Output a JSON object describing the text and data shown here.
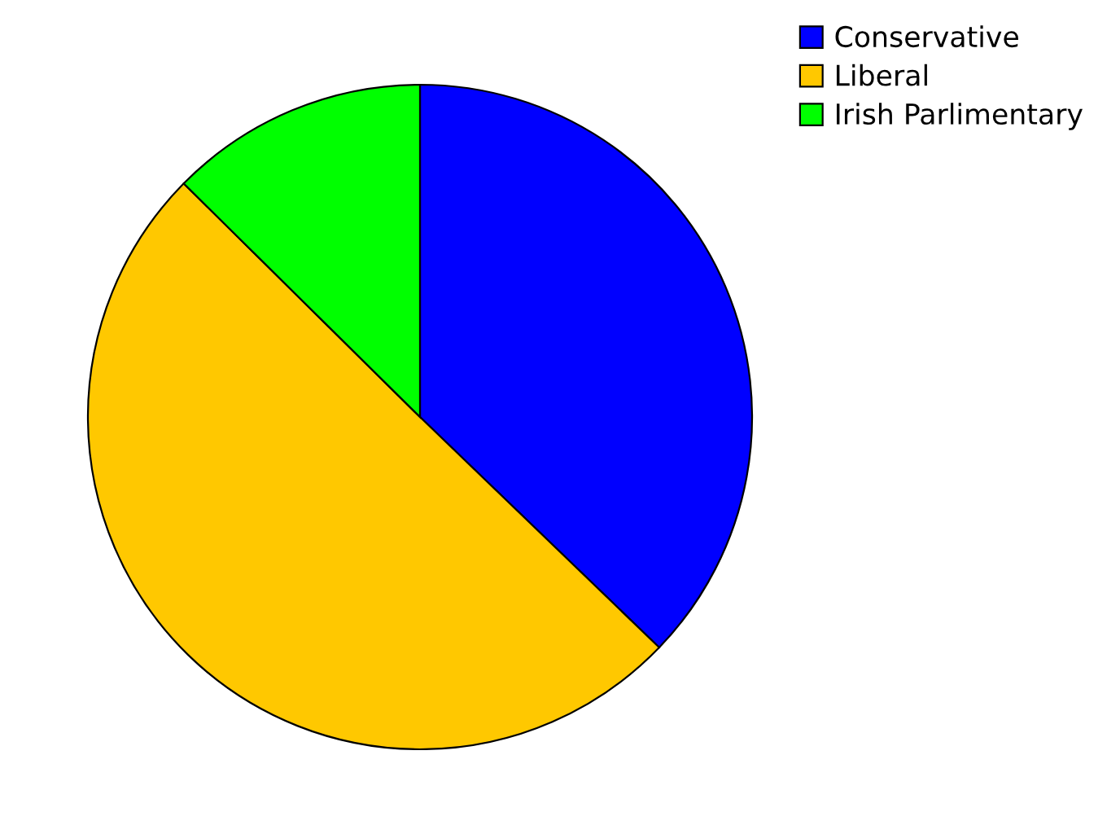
{
  "chart_data": {
    "type": "pie",
    "categories": [
      "Conservative",
      "Liberal",
      "Irish Parlimentary"
    ],
    "values": [
      37.2,
      50.2,
      12.6
    ],
    "colors": [
      "#0000ff",
      "#ffc800",
      "#00ff00"
    ],
    "legend": "top right"
  }
}
